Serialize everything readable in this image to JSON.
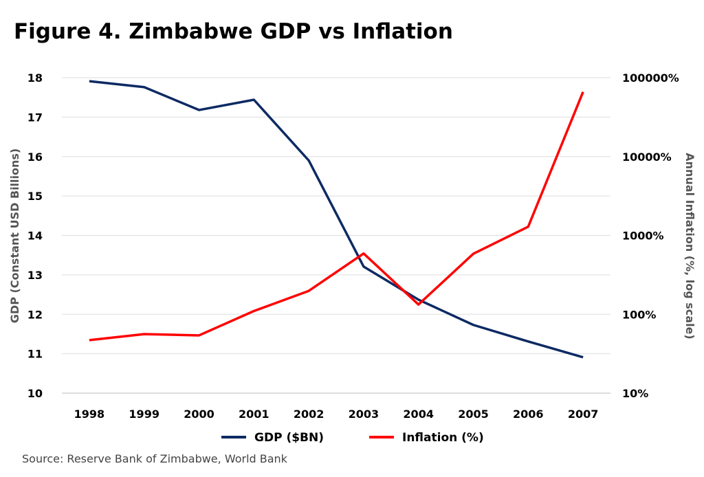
{
  "chart_data": {
    "type": "line",
    "title": "Figure 4. Zimbabwe GDP vs Inflation",
    "source": "Source: Reserve Bank of Zimbabwe, World Bank",
    "categories": [
      "1998",
      "1999",
      "2000",
      "2001",
      "2002",
      "2003",
      "2004",
      "2005",
      "2006",
      "2007"
    ],
    "y_left": {
      "label": "GDP (Constant USD Billions)",
      "range": [
        10,
        18
      ],
      "ticks": [
        "10",
        "11",
        "12",
        "13",
        "14",
        "15",
        "16",
        "17",
        "18"
      ]
    },
    "y_right": {
      "label": "Annual Inflation (%, log scale)",
      "scale": "log",
      "range": [
        10,
        100000
      ],
      "ticks": [
        "10%",
        "100%",
        "1000%",
        "10000%",
        "100000%"
      ]
    },
    "grid": true,
    "legend_position": "bottom",
    "series": [
      {
        "name": "GDP ($BN)",
        "axis": "left",
        "color": "#0d2a63",
        "values": [
          17.91,
          17.76,
          17.18,
          17.44,
          15.9,
          13.21,
          12.37,
          11.73,
          11.31,
          10.91
        ]
      },
      {
        "name": "Inflation (%)",
        "axis": "right",
        "color": "#ff0000",
        "values": [
          47,
          56,
          54,
          110,
          198,
          590,
          133,
          585,
          1290,
          66000
        ]
      }
    ]
  }
}
